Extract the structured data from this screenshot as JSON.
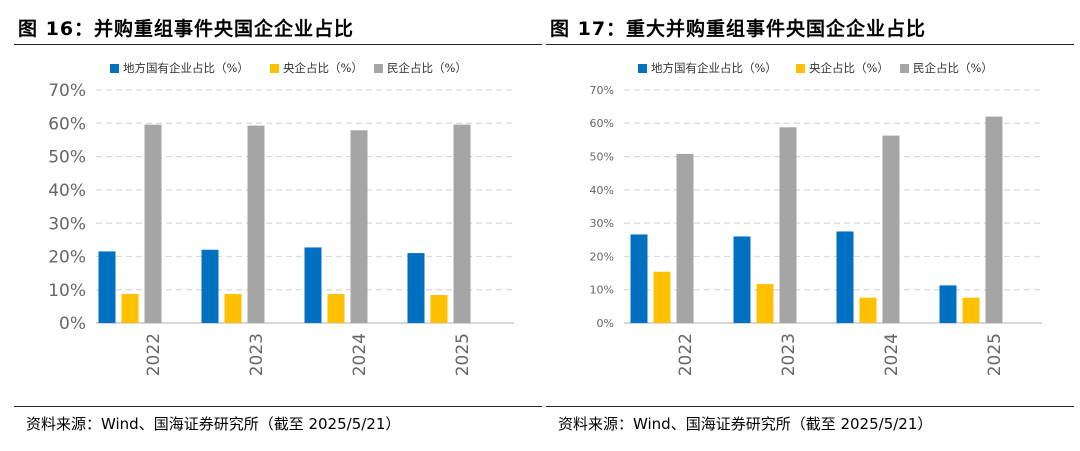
{
  "colors": {
    "local_soe": "#0070c0",
    "central_soe": "#ffc000",
    "private": "#a5a5a5",
    "grid": "#d9d9d9",
    "tick": "#666666"
  },
  "charts": [
    {
      "figure_title": "图 16：并购重组事件央国企企业占比",
      "source": "资料来源：Wind、国海证券研究所（截至 2025/5/21）",
      "legend": [
        "地方国有企业占比（%）",
        "央企占比（%）",
        "民企占比（%）"
      ],
      "yticks": [
        "0%",
        "10%",
        "20%",
        "30%",
        "40%",
        "50%",
        "60%",
        "70%"
      ]
    },
    {
      "figure_title": "图 17：重大并购重组事件央国企企业占比",
      "source": "资料来源：Wind、国海证券研究所（截至 2025/5/21）",
      "legend": [
        "地方国有企业占比（%）",
        "央企占比（%）",
        "民企占比（%）"
      ],
      "yticks": [
        "0%",
        "10%",
        "20%",
        "30%",
        "40%",
        "50%",
        "60%",
        "70%"
      ]
    }
  ],
  "chart_data": [
    {
      "type": "bar",
      "title": "图 16：并购重组事件央国企企业占比",
      "categories": [
        "2022",
        "2023",
        "2024",
        "2025"
      ],
      "series": [
        {
          "name": "地方国有企业占比（%）",
          "values": [
            21.5,
            22.0,
            22.7,
            21.0
          ]
        },
        {
          "name": "央企占比（%）",
          "values": [
            8.7,
            8.7,
            8.7,
            8.4
          ]
        },
        {
          "name": "民企占比（%）",
          "values": [
            59.6,
            59.3,
            57.9,
            59.6
          ]
        }
      ],
      "ylim": [
        0,
        70
      ],
      "grid": true,
      "legend_position": "top"
    },
    {
      "type": "bar",
      "title": "图 17：重大并购重组事件央国企企业占比",
      "categories": [
        "2022",
        "2023",
        "2024",
        "2025"
      ],
      "series": [
        {
          "name": "地方国有企业占比（%）",
          "values": [
            26.6,
            26.0,
            27.5,
            11.3
          ]
        },
        {
          "name": "央企占比（%）",
          "values": [
            15.4,
            11.7,
            7.6,
            7.6
          ]
        },
        {
          "name": "民企占比（%）",
          "values": [
            50.8,
            58.8,
            56.3,
            62.0
          ]
        }
      ],
      "ylim": [
        0,
        70
      ],
      "grid": true,
      "legend_position": "top"
    }
  ]
}
